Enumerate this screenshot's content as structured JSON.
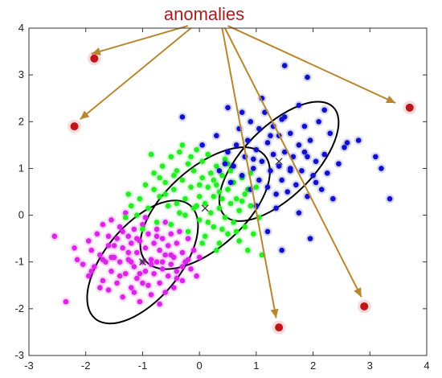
{
  "chart_data": {
    "type": "scatter",
    "title": "anomalies",
    "xlim": [
      -3,
      4
    ],
    "ylim": [
      -3,
      4
    ],
    "xticks": [
      -3,
      -2,
      -1,
      0,
      1,
      2,
      3,
      4
    ],
    "yticks": [
      -3,
      -2,
      -1,
      0,
      1,
      2,
      3,
      4
    ],
    "grid": false,
    "colors": {
      "magenta": "#dd22ee",
      "green": "#22ee22",
      "blue": "#1111cc",
      "anomaly": "#c0151a",
      "arrow": "#b8862e",
      "ellipse": "#000000",
      "centroid": "#333333",
      "title": "#a3201e"
    },
    "series": [
      {
        "color": "magenta",
        "points": [
          [
            -2.55,
            -0.45
          ],
          [
            -2.35,
            -1.85
          ],
          [
            -2.2,
            -0.7
          ],
          [
            -2.15,
            -0.95
          ],
          [
            -2.05,
            -1.05
          ],
          [
            -1.95,
            -0.55
          ],
          [
            -1.95,
            -1.3
          ],
          [
            -1.9,
            -0.75
          ],
          [
            -1.85,
            -1.1
          ],
          [
            -1.8,
            -0.4
          ],
          [
            -1.75,
            -0.85
          ],
          [
            -1.7,
            -1.4
          ],
          [
            -1.7,
            -0.2
          ],
          [
            -1.65,
            -1.0
          ],
          [
            -1.6,
            -0.65
          ],
          [
            -1.6,
            -1.6
          ],
          [
            -1.55,
            -1.2
          ],
          [
            -1.55,
            -0.1
          ],
          [
            -1.5,
            -0.9
          ],
          [
            -1.45,
            -0.5
          ],
          [
            -1.45,
            -1.45
          ],
          [
            -1.4,
            -0.25
          ],
          [
            -1.4,
            -1.0
          ],
          [
            -1.35,
            -1.75
          ],
          [
            -1.35,
            -0.7
          ],
          [
            -1.3,
            -1.25
          ],
          [
            -1.3,
            0.05
          ],
          [
            -1.25,
            -0.45
          ],
          [
            -1.25,
            -0.95
          ],
          [
            -1.2,
            -1.55
          ],
          [
            -1.2,
            -0.6
          ],
          [
            -1.15,
            -1.1
          ],
          [
            -1.15,
            -0.3
          ],
          [
            -1.1,
            -0.8
          ],
          [
            -1.1,
            -1.35
          ],
          [
            -1.05,
            -0.55
          ],
          [
            -1.05,
            -1.85
          ],
          [
            -1.0,
            -1.0
          ],
          [
            -1.0,
            -0.2
          ],
          [
            -0.95,
            -1.2
          ],
          [
            -0.95,
            -0.7
          ],
          [
            -0.9,
            -1.5
          ],
          [
            -0.9,
            -0.4
          ],
          [
            -0.85,
            -0.95
          ],
          [
            -0.85,
            -1.7
          ],
          [
            -0.8,
            -0.6
          ],
          [
            -0.8,
            -1.25
          ],
          [
            -0.75,
            -0.3
          ],
          [
            -0.75,
            -1.0
          ],
          [
            -0.7,
            -0.75
          ],
          [
            -0.7,
            -1.45
          ],
          [
            -0.65,
            -0.5
          ],
          [
            -0.65,
            -1.15
          ],
          [
            -0.6,
            -0.85
          ],
          [
            -0.6,
            -0.15
          ],
          [
            -0.55,
            -1.3
          ],
          [
            -0.55,
            -0.65
          ],
          [
            -0.5,
            -1.05
          ],
          [
            -0.5,
            -0.4
          ],
          [
            -0.45,
            -0.9
          ],
          [
            -0.45,
            -1.55
          ],
          [
            -0.4,
            -0.6
          ],
          [
            -0.4,
            -1.2
          ],
          [
            -0.35,
            -0.35
          ],
          [
            -0.3,
            -0.8
          ],
          [
            -0.3,
            -1.4
          ],
          [
            -0.25,
            -1.0
          ],
          [
            -0.2,
            -0.5
          ],
          [
            -0.15,
            -1.15
          ],
          [
            -0.1,
            -0.75
          ],
          [
            -0.05,
            -1.3
          ],
          [
            0.0,
            -0.9
          ],
          [
            -1.75,
            -1.55
          ],
          [
            -1.6,
            -0.45
          ],
          [
            -1.15,
            -1.65
          ],
          [
            -0.95,
            -0.05
          ],
          [
            -0.7,
            -1.9
          ],
          [
            -1.4,
            -1.3
          ],
          [
            -1.25,
            -0.8
          ],
          [
            -0.85,
            -1.05
          ],
          [
            -1.1,
            -0.5
          ],
          [
            -0.6,
            -1.65
          ],
          [
            -1.5,
            -0.65
          ],
          [
            -0.3,
            -1.1
          ],
          [
            -1.9,
            -1.2
          ],
          [
            -1.55,
            -0.9
          ],
          [
            -1.2,
            -1.0
          ],
          [
            -1.05,
            -1.25
          ],
          [
            -0.75,
            -0.45
          ],
          [
            -0.5,
            -0.85
          ],
          [
            -1.35,
            -0.35
          ],
          [
            -1.0,
            -1.45
          ],
          [
            -0.65,
            -1.0
          ],
          [
            -0.4,
            -1.35
          ],
          [
            -0.2,
            -0.95
          ],
          [
            -1.7,
            -0.95
          ]
        ]
      },
      {
        "color": "green",
        "points": [
          [
            -1.3,
            -0.05
          ],
          [
            -1.25,
            0.45
          ],
          [
            -1.2,
            0.2
          ],
          [
            -1.1,
            0.0
          ],
          [
            -1.05,
            0.35
          ],
          [
            -1.0,
            -0.3
          ],
          [
            -0.95,
            0.65
          ],
          [
            -0.9,
            0.15
          ],
          [
            -0.85,
            1.3
          ],
          [
            -0.8,
            0.9
          ],
          [
            -0.75,
            -0.15
          ],
          [
            -0.7,
            0.4
          ],
          [
            -0.65,
            1.05
          ],
          [
            -0.6,
            0.7
          ],
          [
            -0.55,
            0.2
          ],
          [
            -0.5,
            1.25
          ],
          [
            -0.5,
            -0.2
          ],
          [
            -0.45,
            0.55
          ],
          [
            -0.4,
            0.95
          ],
          [
            -0.35,
            0.05
          ],
          [
            -0.35,
            1.35
          ],
          [
            -0.3,
            0.75
          ],
          [
            -0.25,
            0.35
          ],
          [
            -0.2,
            1.1
          ],
          [
            -0.2,
            -0.35
          ],
          [
            -0.15,
            0.6
          ],
          [
            -0.1,
            0.15
          ],
          [
            -0.1,
            0.95
          ],
          [
            -0.05,
            1.4
          ],
          [
            0.0,
            0.4
          ],
          [
            0.0,
            -0.1
          ],
          [
            0.05,
            0.8
          ],
          [
            0.05,
            1.15
          ],
          [
            0.1,
            0.25
          ],
          [
            0.1,
            -0.45
          ],
          [
            0.15,
            0.6
          ],
          [
            0.15,
            1.3
          ],
          [
            0.2,
            0.05
          ],
          [
            0.2,
            0.9
          ],
          [
            0.25,
            0.4
          ],
          [
            0.25,
            -0.25
          ],
          [
            0.3,
            1.05
          ],
          [
            0.3,
            0.65
          ],
          [
            0.35,
            0.15
          ],
          [
            0.35,
            -0.6
          ],
          [
            0.4,
            0.85
          ],
          [
            0.4,
            0.35
          ],
          [
            0.45,
            -0.05
          ],
          [
            0.45,
            1.2
          ],
          [
            0.5,
            0.55
          ],
          [
            0.5,
            -0.4
          ],
          [
            0.55,
            0.25
          ],
          [
            0.55,
            0.95
          ],
          [
            0.6,
            -0.15
          ],
          [
            0.6,
            0.7
          ],
          [
            0.65,
            0.35
          ],
          [
            0.7,
            -0.55
          ],
          [
            0.7,
            0.1
          ],
          [
            0.75,
            0.8
          ],
          [
            0.8,
            -0.25
          ],
          [
            0.8,
            0.45
          ],
          [
            0.85,
            -0.75
          ],
          [
            0.9,
            0.2
          ],
          [
            0.95,
            -0.4
          ],
          [
            1.0,
            0.6
          ],
          [
            1.05,
            -0.05
          ],
          [
            1.1,
            -0.85
          ],
          [
            0.3,
            -0.75
          ],
          [
            0.05,
            -0.6
          ],
          [
            -0.25,
            0.0
          ],
          [
            -0.6,
            0.45
          ],
          [
            -0.8,
            0.55
          ],
          [
            -0.4,
            0.25
          ],
          [
            0.0,
            0.65
          ],
          [
            0.35,
            0.5
          ],
          [
            0.65,
            -0.35
          ],
          [
            -0.15,
            1.25
          ],
          [
            0.5,
            1.1
          ],
          [
            0.15,
            -0.15
          ],
          [
            -0.45,
            0.85
          ],
          [
            0.75,
            0.3
          ],
          [
            0.9,
            0.9
          ],
          [
            -0.7,
            0.8
          ],
          [
            0.25,
            0.75
          ],
          [
            -0.05,
            0.2
          ],
          [
            0.4,
            -0.3
          ],
          [
            0.85,
            0.55
          ],
          [
            -0.3,
            1.5
          ]
        ]
      },
      {
        "color": "blue",
        "points": [
          [
            -0.3,
            2.1
          ],
          [
            0.05,
            1.5
          ],
          [
            0.3,
            1.7
          ],
          [
            0.35,
            0.95
          ],
          [
            0.45,
            1.1
          ],
          [
            0.5,
            1.35
          ],
          [
            0.55,
            0.7
          ],
          [
            0.6,
            1.05
          ],
          [
            0.65,
            1.5
          ],
          [
            0.7,
            1.85
          ],
          [
            0.75,
            0.85
          ],
          [
            0.8,
            1.25
          ],
          [
            0.85,
            1.6
          ],
          [
            0.9,
            0.55
          ],
          [
            0.9,
            2.0
          ],
          [
            0.95,
            1.0
          ],
          [
            1.0,
            1.4
          ],
          [
            1.05,
            0.75
          ],
          [
            1.05,
            1.85
          ],
          [
            1.1,
            1.15
          ],
          [
            1.15,
            2.2
          ],
          [
            1.2,
            0.6
          ],
          [
            1.2,
            1.55
          ],
          [
            1.25,
            0.95
          ],
          [
            1.3,
            1.9
          ],
          [
            1.3,
            1.3
          ],
          [
            1.35,
            0.45
          ],
          [
            1.4,
            1.05
          ],
          [
            1.4,
            1.7
          ],
          [
            1.45,
            0.75
          ],
          [
            1.5,
            2.1
          ],
          [
            1.5,
            1.35
          ],
          [
            1.55,
            0.5
          ],
          [
            1.6,
            1.0
          ],
          [
            1.6,
            1.75
          ],
          [
            1.65,
            1.25
          ],
          [
            1.7,
            0.65
          ],
          [
            1.75,
            1.5
          ],
          [
            1.75,
            2.35
          ],
          [
            1.8,
            0.95
          ],
          [
            1.85,
            1.9
          ],
          [
            1.9,
            1.25
          ],
          [
            1.9,
            0.4
          ],
          [
            1.95,
            1.6
          ],
          [
            2.0,
            0.85
          ],
          [
            2.05,
            1.15
          ],
          [
            2.1,
            2.0
          ],
          [
            2.15,
            0.55
          ],
          [
            2.2,
            1.3
          ],
          [
            2.25,
            0.9
          ],
          [
            2.3,
            1.75
          ],
          [
            2.35,
            0.35
          ],
          [
            2.45,
            1.1
          ],
          [
            2.55,
            1.45
          ],
          [
            1.5,
            3.2
          ],
          [
            1.9,
            2.95
          ],
          [
            2.2,
            2.25
          ],
          [
            2.6,
            1.55
          ],
          [
            2.8,
            1.6
          ],
          [
            3.1,
            1.25
          ],
          [
            3.2,
            1.0
          ],
          [
            3.35,
            0.35
          ],
          [
            1.95,
            -0.5
          ],
          [
            1.45,
            -0.75
          ],
          [
            1.2,
            -0.35
          ],
          [
            1.0,
            0.2
          ],
          [
            1.35,
            0.15
          ],
          [
            1.75,
            0.05
          ],
          [
            1.1,
            2.5
          ],
          [
            0.5,
            2.3
          ],
          [
            0.75,
            2.2
          ],
          [
            1.6,
            0.95
          ],
          [
            1.25,
            1.7
          ],
          [
            0.95,
            1.2
          ],
          [
            1.85,
            1.35
          ],
          [
            2.05,
            0.7
          ],
          [
            1.45,
            2.05
          ]
        ]
      }
    ],
    "anomalies": [
      [
        -1.85,
        3.35
      ],
      [
        -2.2,
        1.9
      ],
      [
        3.7,
        2.3
      ],
      [
        1.4,
        -2.4
      ],
      [
        2.9,
        -1.95
      ]
    ],
    "centroids": [
      [
        -1.0,
        -1.0
      ],
      [
        0.1,
        0.15
      ],
      [
        1.4,
        1.15
      ]
    ],
    "ellipses": [
      {
        "center": [
          -1.0,
          -1.0
        ],
        "rx": 1.3,
        "ry": 0.8,
        "angle_deg": 50
      },
      {
        "center": [
          0.1,
          0.15
        ],
        "rx": 1.4,
        "ry": 0.85,
        "angle_deg": 42
      },
      {
        "center": [
          1.4,
          1.15
        ],
        "rx": 1.35,
        "ry": 0.75,
        "angle_deg": 45
      }
    ],
    "arrows": [
      {
        "from": [
          -0.2,
          4.05
        ],
        "to": [
          -1.9,
          3.45
        ]
      },
      {
        "from": [
          -0.15,
          4.0
        ],
        "to": [
          -2.1,
          2.05
        ]
      },
      {
        "from": [
          0.5,
          4.05
        ],
        "to": [
          3.45,
          2.4
        ]
      },
      {
        "from": [
          0.4,
          4.0
        ],
        "to": [
          1.35,
          -2.2
        ]
      },
      {
        "from": [
          0.45,
          4.0
        ],
        "to": [
          2.85,
          -1.75
        ]
      }
    ]
  }
}
